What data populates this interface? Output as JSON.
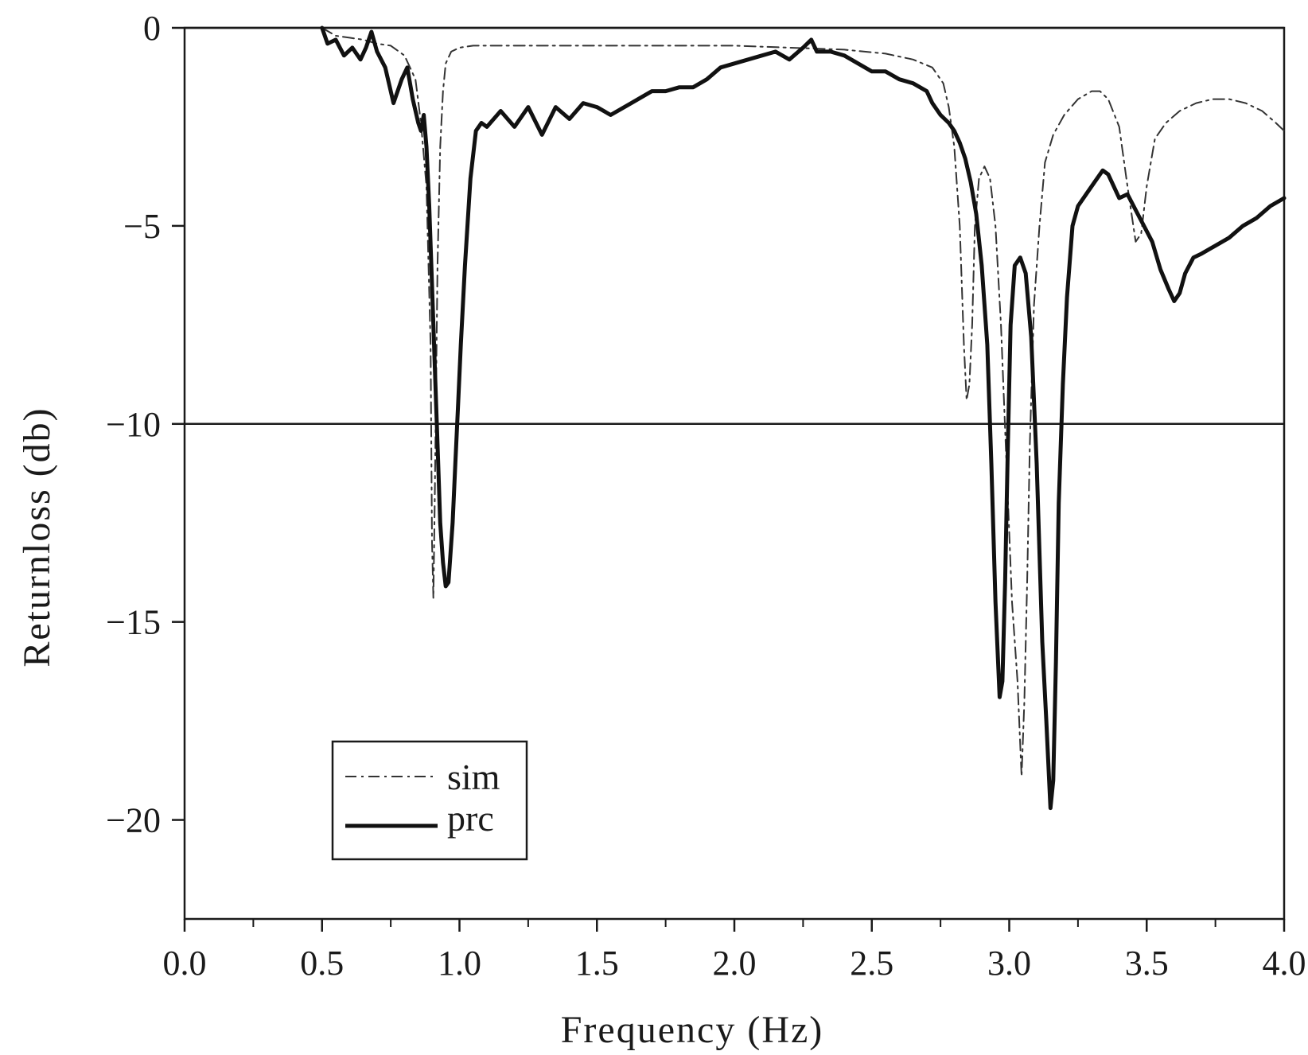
{
  "chart_data": {
    "type": "line",
    "xlabel": "Frequency (Hz)",
    "ylabel": "Returnloss (db)",
    "xlim": [
      0.0,
      4.0
    ],
    "ylim": [
      -22.5,
      0
    ],
    "xticks": [
      "0.0",
      "0.5",
      "1.0",
      "1.5",
      "2.0",
      "2.5",
      "3.0",
      "3.5",
      "4.0"
    ],
    "xtick_values": [
      0,
      0.5,
      1.0,
      1.5,
      2.0,
      2.5,
      3.0,
      3.5,
      4.0
    ],
    "yticks": [
      "0",
      "−5",
      "−10",
      "−15",
      "−20"
    ],
    "ytick_values": [
      0,
      -5,
      -10,
      -15,
      -20
    ],
    "reference_lines": [
      0,
      -10
    ],
    "grid": false,
    "legend_position": "bottom-left",
    "colors": {
      "axis": "#1a1a1a",
      "sim": "#333333",
      "prc": "#111111"
    },
    "series": [
      {
        "name": "sim",
        "style": "dash-dot",
        "x": [
          0.5,
          0.55,
          0.6,
          0.65,
          0.7,
          0.75,
          0.8,
          0.84,
          0.86,
          0.88,
          0.895,
          0.9,
          0.905,
          0.91,
          0.92,
          0.93,
          0.94,
          0.95,
          0.97,
          1.0,
          1.05,
          1.1,
          1.2,
          1.4,
          1.6,
          1.8,
          2.0,
          2.2,
          2.4,
          2.55,
          2.65,
          2.72,
          2.76,
          2.78,
          2.8,
          2.82,
          2.835,
          2.845,
          2.855,
          2.865,
          2.875,
          2.89,
          2.91,
          2.93,
          2.95,
          2.97,
          2.99,
          3.01,
          3.03,
          3.045,
          3.055,
          3.065,
          3.075,
          3.09,
          3.11,
          3.13,
          3.16,
          3.2,
          3.25,
          3.3,
          3.33,
          3.36,
          3.4,
          3.43,
          3.46,
          3.48,
          3.5,
          3.53,
          3.57,
          3.62,
          3.68,
          3.74,
          3.8,
          3.86,
          3.92,
          3.97,
          4.0
        ],
        "values": [
          0,
          -0.2,
          -0.25,
          -0.3,
          -0.4,
          -0.45,
          -0.7,
          -1.3,
          -2.4,
          -4.0,
          -8.0,
          -13.0,
          -14.4,
          -12.0,
          -6.0,
          -3.0,
          -1.6,
          -0.9,
          -0.6,
          -0.5,
          -0.45,
          -0.45,
          -0.45,
          -0.45,
          -0.45,
          -0.45,
          -0.45,
          -0.5,
          -0.55,
          -0.65,
          -0.8,
          -1.0,
          -1.4,
          -2.0,
          -3.0,
          -5.0,
          -8.0,
          -9.4,
          -9.0,
          -7.5,
          -5.0,
          -3.8,
          -3.5,
          -3.8,
          -5.0,
          -7.5,
          -11.0,
          -14.5,
          -16.5,
          -18.9,
          -17.0,
          -14.0,
          -10.5,
          -7.0,
          -5.0,
          -3.4,
          -2.7,
          -2.2,
          -1.8,
          -1.6,
          -1.6,
          -1.8,
          -2.5,
          -4.0,
          -5.4,
          -5.2,
          -4.0,
          -2.8,
          -2.4,
          -2.1,
          -1.9,
          -1.8,
          -1.8,
          -1.9,
          -2.1,
          -2.4,
          -2.6
        ]
      },
      {
        "name": "prc",
        "style": "solid",
        "x": [
          0.5,
          0.52,
          0.55,
          0.58,
          0.61,
          0.64,
          0.66,
          0.68,
          0.7,
          0.73,
          0.76,
          0.79,
          0.81,
          0.83,
          0.85,
          0.86,
          0.87,
          0.88,
          0.89,
          0.9,
          0.91,
          0.92,
          0.93,
          0.94,
          0.95,
          0.96,
          0.975,
          0.985,
          0.995,
          1.005,
          1.02,
          1.04,
          1.06,
          1.08,
          1.1,
          1.15,
          1.2,
          1.25,
          1.3,
          1.35,
          1.4,
          1.45,
          1.5,
          1.55,
          1.6,
          1.65,
          1.7,
          1.75,
          1.8,
          1.85,
          1.9,
          1.95,
          2.0,
          2.05,
          2.1,
          2.15,
          2.2,
          2.25,
          2.28,
          2.3,
          2.35,
          2.4,
          2.45,
          2.5,
          2.55,
          2.6,
          2.65,
          2.7,
          2.72,
          2.75,
          2.78,
          2.8,
          2.82,
          2.84,
          2.86,
          2.88,
          2.9,
          2.92,
          2.935,
          2.95,
          2.965,
          2.975,
          2.985,
          2.995,
          3.005,
          3.02,
          3.04,
          3.06,
          3.08,
          3.1,
          3.12,
          3.135,
          3.15,
          3.16,
          3.17,
          3.18,
          3.195,
          3.21,
          3.23,
          3.25,
          3.28,
          3.31,
          3.34,
          3.36,
          3.38,
          3.4,
          3.43,
          3.46,
          3.49,
          3.52,
          3.55,
          3.58,
          3.6,
          3.62,
          3.64,
          3.67,
          3.7,
          3.75,
          3.8,
          3.85,
          3.9,
          3.95,
          4.0
        ],
        "values": [
          0,
          -0.4,
          -0.3,
          -0.7,
          -0.5,
          -0.8,
          -0.5,
          -0.1,
          -0.6,
          -1.0,
          -1.9,
          -1.3,
          -1.0,
          -1.8,
          -2.4,
          -2.6,
          -2.2,
          -3.0,
          -4.5,
          -6.5,
          -8.5,
          -10.5,
          -12.5,
          -13.5,
          -14.1,
          -14.0,
          -12.5,
          -11.0,
          -9.5,
          -8.0,
          -6.0,
          -3.8,
          -2.6,
          -2.4,
          -2.5,
          -2.1,
          -2.5,
          -2.0,
          -2.7,
          -2.0,
          -2.3,
          -1.9,
          -2.0,
          -2.2,
          -2.0,
          -1.8,
          -1.6,
          -1.6,
          -1.5,
          -1.5,
          -1.3,
          -1.0,
          -0.9,
          -0.8,
          -0.7,
          -0.6,
          -0.8,
          -0.5,
          -0.3,
          -0.6,
          -0.6,
          -0.7,
          -0.9,
          -1.1,
          -1.1,
          -1.3,
          -1.4,
          -1.6,
          -1.9,
          -2.2,
          -2.4,
          -2.6,
          -2.9,
          -3.3,
          -3.9,
          -4.7,
          -6.0,
          -8.0,
          -11.0,
          -14.5,
          -16.9,
          -16.5,
          -14.0,
          -10.5,
          -7.5,
          -6.0,
          -5.8,
          -6.2,
          -7.8,
          -11.0,
          -15.5,
          -17.5,
          -19.7,
          -19.0,
          -16.0,
          -12.0,
          -9.0,
          -6.8,
          -5.0,
          -4.5,
          -4.2,
          -3.9,
          -3.6,
          -3.7,
          -4.0,
          -4.3,
          -4.2,
          -4.6,
          -5.0,
          -5.4,
          -6.1,
          -6.6,
          -6.9,
          -6.7,
          -6.2,
          -5.8,
          -5.7,
          -5.5,
          -5.3,
          -5.0,
          -4.8,
          -4.5,
          -4.3
        ]
      }
    ]
  }
}
